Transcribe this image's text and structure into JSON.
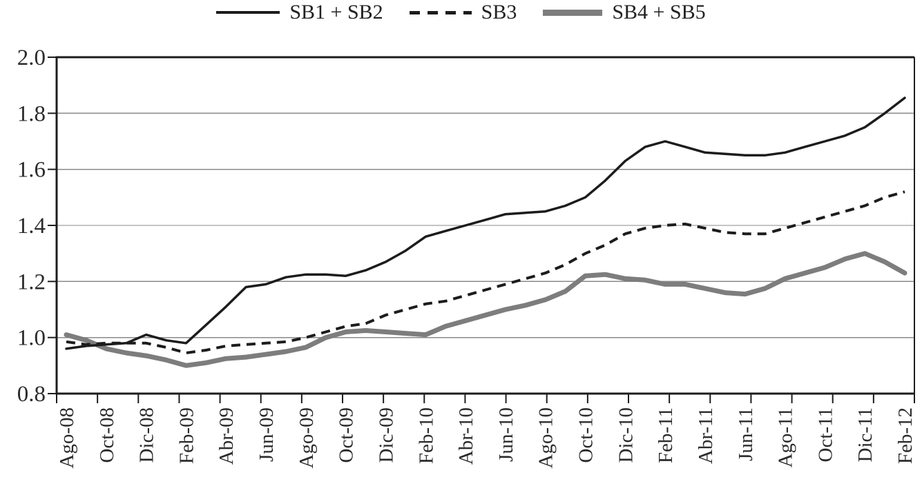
{
  "legend": {
    "items": [
      {
        "label": "SB1 + SB2",
        "style": "solid-black"
      },
      {
        "label": "SB3",
        "style": "dashed-black"
      },
      {
        "label": "SB4 + SB5",
        "style": "solid-gray"
      }
    ]
  },
  "colors": {
    "line_black": "#1c1c1c",
    "line_gray": "#7d7d7d",
    "grid": "#8a8a8a",
    "axis": "#1c1c1c",
    "text": "#2b2b2b",
    "background": "#ffffff"
  },
  "chart_data": {
    "type": "line",
    "title": "",
    "xlabel": "",
    "ylabel": "",
    "ylim": [
      0.8,
      2.0
    ],
    "y_ticks": [
      0.8,
      1.0,
      1.2,
      1.4,
      1.6,
      1.8,
      2.0
    ],
    "y_tick_labels": [
      "0.8",
      "1.0",
      "1.2",
      "1.4",
      "1.6",
      "1.8",
      "2.0"
    ],
    "x_tick_labels": [
      "Ago-08",
      "Oct-08",
      "Dic-08",
      "Feb-09",
      "Abr-09",
      "Jun-09",
      "Ago-09",
      "Oct-09",
      "Dic-09",
      "Feb-10",
      "Abr-10",
      "Jun-10",
      "Ago-10",
      "Oct-10",
      "Dic-10",
      "Feb-11",
      "Abr-11",
      "Jun-11",
      "Ago-11",
      "Oct-11",
      "Dic-11",
      "Feb-12"
    ],
    "points_per_x_label": 2,
    "grid": true,
    "legend_position": "top",
    "series": [
      {
        "name": "SB1 + SB2",
        "style": "solid-black",
        "values": [
          0.96,
          0.97,
          0.975,
          0.98,
          1.01,
          0.99,
          0.98,
          1.045,
          1.11,
          1.18,
          1.19,
          1.215,
          1.225,
          1.225,
          1.22,
          1.24,
          1.27,
          1.31,
          1.36,
          1.38,
          1.4,
          1.42,
          1.44,
          1.445,
          1.45,
          1.47,
          1.5,
          1.56,
          1.63,
          1.68,
          1.7,
          1.68,
          1.66,
          1.655,
          1.65,
          1.65,
          1.66,
          1.68,
          1.7,
          1.72,
          1.75,
          1.8,
          1.855
        ]
      },
      {
        "name": "SB3",
        "style": "dashed-black",
        "values": [
          0.985,
          0.975,
          0.98,
          0.98,
          0.98,
          0.965,
          0.945,
          0.955,
          0.97,
          0.975,
          0.98,
          0.985,
          1.0,
          1.02,
          1.04,
          1.05,
          1.08,
          1.1,
          1.12,
          1.13,
          1.15,
          1.17,
          1.19,
          1.21,
          1.23,
          1.26,
          1.3,
          1.33,
          1.37,
          1.39,
          1.4,
          1.405,
          1.39,
          1.375,
          1.37,
          1.37,
          1.39,
          1.41,
          1.43,
          1.45,
          1.47,
          1.5,
          1.52
        ]
      },
      {
        "name": "SB4 + SB5",
        "style": "solid-gray",
        "values": [
          1.01,
          0.99,
          0.96,
          0.945,
          0.935,
          0.92,
          0.9,
          0.91,
          0.925,
          0.93,
          0.94,
          0.95,
          0.965,
          1.0,
          1.02,
          1.025,
          1.02,
          1.015,
          1.01,
          1.04,
          1.06,
          1.08,
          1.1,
          1.115,
          1.135,
          1.165,
          1.22,
          1.225,
          1.21,
          1.205,
          1.19,
          1.19,
          1.175,
          1.16,
          1.155,
          1.175,
          1.21,
          1.23,
          1.25,
          1.28,
          1.3,
          1.27,
          1.23
        ]
      }
    ]
  }
}
